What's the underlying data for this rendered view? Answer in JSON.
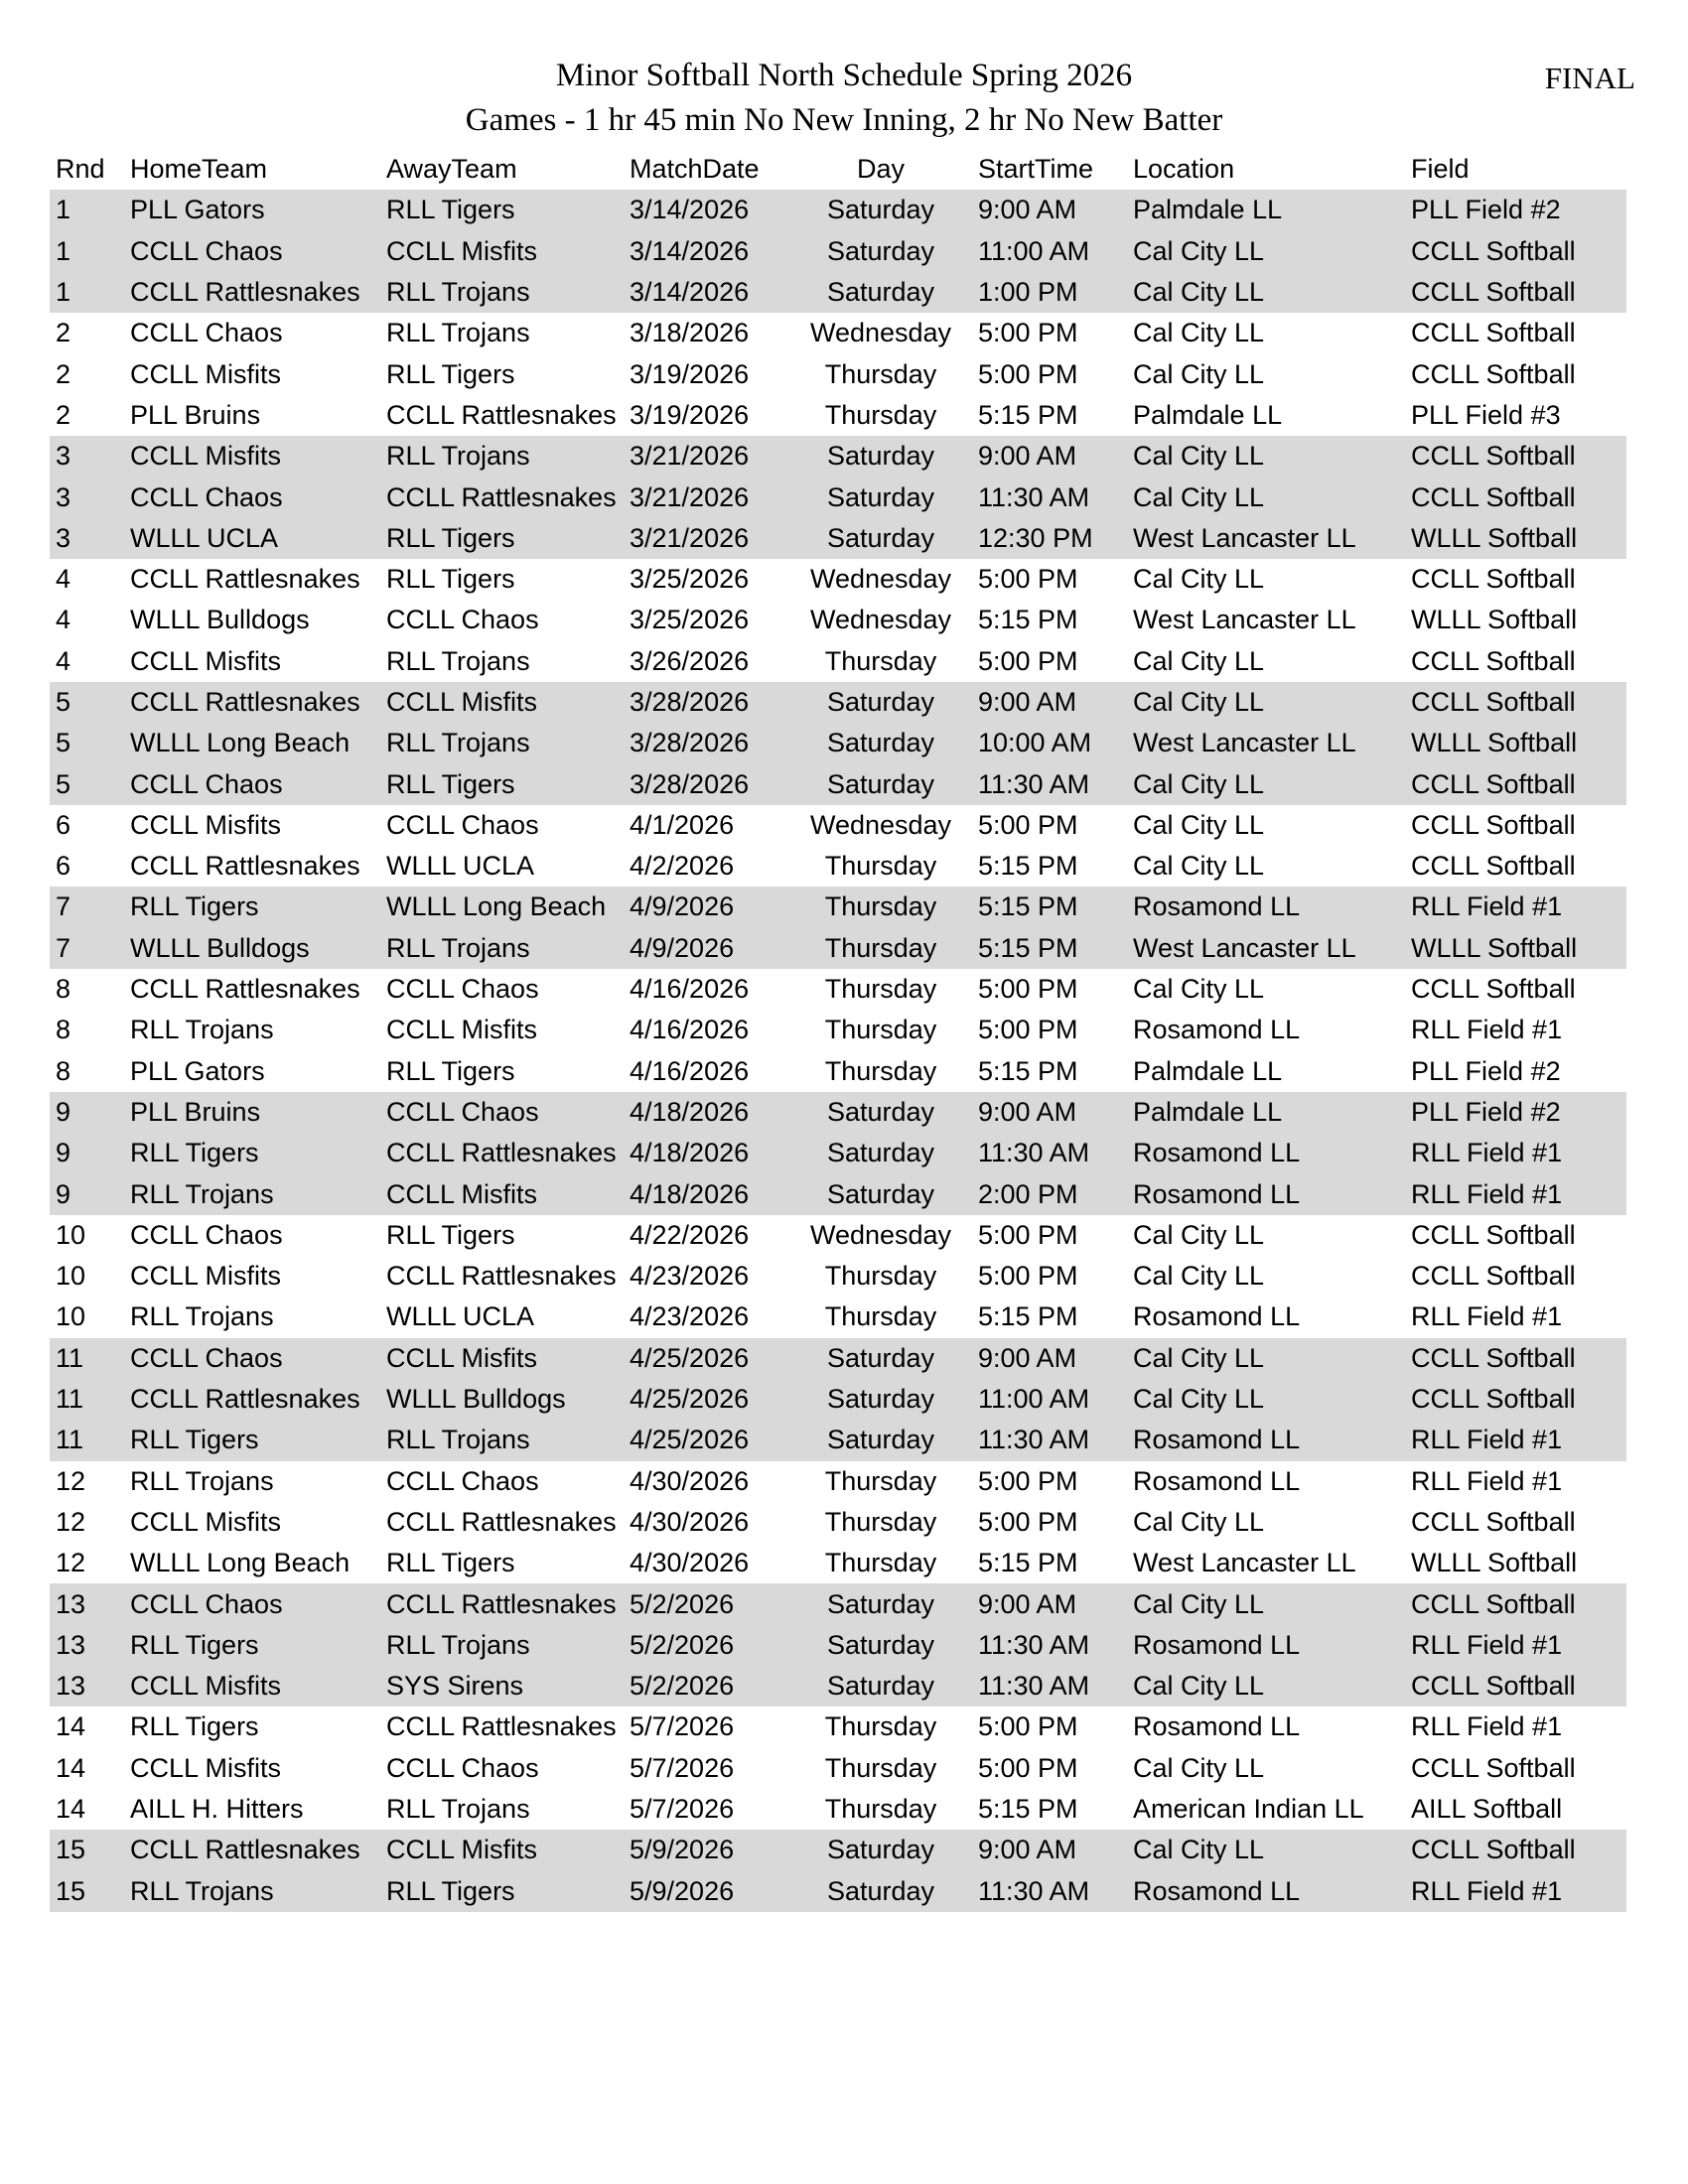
{
  "page": {
    "title": "Minor Softball North Schedule Spring 2026",
    "subtitle": "Games - 1 hr 45 min No New Inning, 2 hr No New Batter",
    "status_label": "FINAL"
  },
  "colors": {
    "row_shaded": "#d9d9d9",
    "row_plain": "#ffffff",
    "text": "#000000"
  },
  "table": {
    "columns": [
      "Rnd",
      "HomeTeam",
      "AwayTeam",
      "MatchDate",
      "Day",
      "StartTime",
      "Location",
      "Field"
    ],
    "rows": [
      [
        "1",
        "PLL Gators",
        "RLL Tigers",
        "3/14/2026",
        "Saturday",
        "9:00 AM",
        "Palmdale LL",
        "PLL Field #2"
      ],
      [
        "1",
        "CCLL Chaos",
        "CCLL Misfits",
        "3/14/2026",
        "Saturday",
        "11:00 AM",
        "Cal City LL",
        "CCLL Softball"
      ],
      [
        "1",
        "CCLL Rattlesnakes",
        "RLL Trojans",
        "3/14/2026",
        "Saturday",
        "1:00 PM",
        "Cal City LL",
        "CCLL Softball"
      ],
      [
        "2",
        "CCLL Chaos",
        "RLL Trojans",
        "3/18/2026",
        "Wednesday",
        "5:00 PM",
        "Cal City LL",
        "CCLL Softball"
      ],
      [
        "2",
        "CCLL Misfits",
        "RLL Tigers",
        "3/19/2026",
        "Thursday",
        "5:00 PM",
        "Cal City LL",
        "CCLL Softball"
      ],
      [
        "2",
        "PLL Bruins",
        "CCLL Rattlesnakes",
        "3/19/2026",
        "Thursday",
        "5:15 PM",
        "Palmdale LL",
        "PLL Field #3"
      ],
      [
        "3",
        "CCLL Misfits",
        "RLL Trojans",
        "3/21/2026",
        "Saturday",
        "9:00 AM",
        "Cal City LL",
        "CCLL Softball"
      ],
      [
        "3",
        "CCLL Chaos",
        "CCLL Rattlesnakes",
        "3/21/2026",
        "Saturday",
        "11:30 AM",
        "Cal City LL",
        "CCLL Softball"
      ],
      [
        "3",
        "WLLL UCLA",
        "RLL Tigers",
        "3/21/2026",
        "Saturday",
        "12:30 PM",
        "West Lancaster LL",
        "WLLL Softball"
      ],
      [
        "4",
        "CCLL Rattlesnakes",
        "RLL Tigers",
        "3/25/2026",
        "Wednesday",
        "5:00 PM",
        "Cal City LL",
        "CCLL Softball"
      ],
      [
        "4",
        "WLLL Bulldogs",
        "CCLL Chaos",
        "3/25/2026",
        "Wednesday",
        "5:15 PM",
        "West Lancaster LL",
        "WLLL Softball"
      ],
      [
        "4",
        "CCLL Misfits",
        "RLL Trojans",
        "3/26/2026",
        "Thursday",
        "5:00 PM",
        "Cal City LL",
        "CCLL Softball"
      ],
      [
        "5",
        "CCLL Rattlesnakes",
        "CCLL Misfits",
        "3/28/2026",
        "Saturday",
        "9:00 AM",
        "Cal City LL",
        "CCLL Softball"
      ],
      [
        "5",
        "WLLL Long Beach",
        "RLL Trojans",
        "3/28/2026",
        "Saturday",
        "10:00 AM",
        "West Lancaster LL",
        "WLLL Softball"
      ],
      [
        "5",
        "CCLL Chaos",
        "RLL Tigers",
        "3/28/2026",
        "Saturday",
        "11:30 AM",
        "Cal City LL",
        "CCLL Softball"
      ],
      [
        "6",
        "CCLL Misfits",
        "CCLL Chaos",
        "4/1/2026",
        "Wednesday",
        "5:00 PM",
        "Cal City LL",
        "CCLL Softball"
      ],
      [
        "6",
        "CCLL Rattlesnakes",
        "WLLL UCLA",
        "4/2/2026",
        "Thursday",
        "5:15 PM",
        "Cal City LL",
        "CCLL Softball"
      ],
      [
        "7",
        "RLL Tigers",
        "WLLL Long Beach",
        "4/9/2026",
        "Thursday",
        "5:15 PM",
        "Rosamond LL",
        "RLL Field #1"
      ],
      [
        "7",
        "WLLL Bulldogs",
        "RLL Trojans",
        "4/9/2026",
        "Thursday",
        "5:15 PM",
        "West Lancaster LL",
        "WLLL Softball"
      ],
      [
        "8",
        "CCLL Rattlesnakes",
        "CCLL Chaos",
        "4/16/2026",
        "Thursday",
        "5:00 PM",
        "Cal City LL",
        "CCLL Softball"
      ],
      [
        "8",
        "RLL Trojans",
        "CCLL Misfits",
        "4/16/2026",
        "Thursday",
        "5:00 PM",
        "Rosamond LL",
        "RLL Field #1"
      ],
      [
        "8",
        "PLL Gators",
        "RLL Tigers",
        "4/16/2026",
        "Thursday",
        "5:15 PM",
        "Palmdale LL",
        "PLL Field #2"
      ],
      [
        "9",
        "PLL Bruins",
        "CCLL Chaos",
        "4/18/2026",
        "Saturday",
        "9:00 AM",
        "Palmdale LL",
        "PLL Field #2"
      ],
      [
        "9",
        "RLL Tigers",
        "CCLL Rattlesnakes",
        "4/18/2026",
        "Saturday",
        "11:30 AM",
        "Rosamond LL",
        "RLL Field #1"
      ],
      [
        "9",
        "RLL Trojans",
        "CCLL Misfits",
        "4/18/2026",
        "Saturday",
        "2:00 PM",
        "Rosamond LL",
        "RLL Field #1"
      ],
      [
        "10",
        "CCLL Chaos",
        "RLL Tigers",
        "4/22/2026",
        "Wednesday",
        "5:00 PM",
        "Cal City LL",
        "CCLL Softball"
      ],
      [
        "10",
        "CCLL Misfits",
        "CCLL Rattlesnakes",
        "4/23/2026",
        "Thursday",
        "5:00 PM",
        "Cal City LL",
        "CCLL Softball"
      ],
      [
        "10",
        "RLL Trojans",
        "WLLL UCLA",
        "4/23/2026",
        "Thursday",
        "5:15 PM",
        "Rosamond LL",
        "RLL Field #1"
      ],
      [
        "11",
        "CCLL Chaos",
        "CCLL Misfits",
        "4/25/2026",
        "Saturday",
        "9:00 AM",
        "Cal City LL",
        "CCLL Softball"
      ],
      [
        "11",
        "CCLL Rattlesnakes",
        "WLLL Bulldogs",
        "4/25/2026",
        "Saturday",
        "11:00 AM",
        "Cal City LL",
        "CCLL Softball"
      ],
      [
        "11",
        "RLL Tigers",
        "RLL Trojans",
        "4/25/2026",
        "Saturday",
        "11:30 AM",
        "Rosamond LL",
        "RLL Field #1"
      ],
      [
        "12",
        "RLL Trojans",
        "CCLL Chaos",
        "4/30/2026",
        "Thursday",
        "5:00 PM",
        "Rosamond LL",
        "RLL Field #1"
      ],
      [
        "12",
        "CCLL Misfits",
        "CCLL Rattlesnakes",
        "4/30/2026",
        "Thursday",
        "5:00 PM",
        "Cal City LL",
        "CCLL Softball"
      ],
      [
        "12",
        "WLLL Long Beach",
        "RLL Tigers",
        "4/30/2026",
        "Thursday",
        "5:15 PM",
        "West Lancaster LL",
        "WLLL Softball"
      ],
      [
        "13",
        "CCLL Chaos",
        "CCLL Rattlesnakes",
        "5/2/2026",
        "Saturday",
        "9:00 AM",
        "Cal City LL",
        "CCLL Softball"
      ],
      [
        "13",
        "RLL Tigers",
        "RLL Trojans",
        "5/2/2026",
        "Saturday",
        "11:30 AM",
        "Rosamond LL",
        "RLL Field #1"
      ],
      [
        "13",
        "CCLL Misfits",
        "SYS Sirens",
        "5/2/2026",
        "Saturday",
        "11:30 AM",
        "Cal City LL",
        "CCLL Softball"
      ],
      [
        "14",
        "RLL Tigers",
        "CCLL Rattlesnakes",
        "5/7/2026",
        "Thursday",
        "5:00 PM",
        "Rosamond LL",
        "RLL Field #1"
      ],
      [
        "14",
        "CCLL Misfits",
        "CCLL Chaos",
        "5/7/2026",
        "Thursday",
        "5:00 PM",
        "Cal City LL",
        "CCLL Softball"
      ],
      [
        "14",
        "AILL H. Hitters",
        "RLL Trojans",
        "5/7/2026",
        "Thursday",
        "5:15 PM",
        "American Indian LL",
        "AILL Softball"
      ],
      [
        "15",
        "CCLL Rattlesnakes",
        "CCLL Misfits",
        "5/9/2026",
        "Saturday",
        "9:00 AM",
        "Cal City LL",
        "CCLL Softball"
      ],
      [
        "15",
        "RLL Trojans",
        "RLL Tigers",
        "5/9/2026",
        "Saturday",
        "11:30 AM",
        "Rosamond LL",
        "RLL Field #1"
      ]
    ]
  }
}
